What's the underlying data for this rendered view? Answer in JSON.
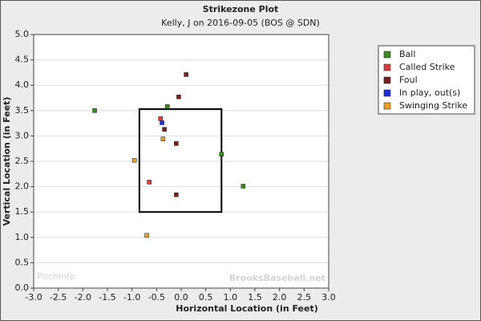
{
  "chart_data": {
    "type": "scatter",
    "title": "Strikezone Plot",
    "subtitle": "Kelly, J on 2016-09-05 (BOS @ SDN)",
    "xlabel": "Horizontal Location (in Feet)",
    "ylabel": "Vertical Location (in Feet)",
    "watermarks": [
      "PitchInfo",
      "BrooksBaseball.net"
    ],
    "xlim": [
      -3.0,
      3.0
    ],
    "ylim": [
      0.0,
      5.0
    ],
    "xticks": [
      {
        "value": -3,
        "label": "-3.0"
      },
      {
        "value": -2.5,
        "label": "-2.5"
      },
      {
        "value": -2,
        "label": "-2.0"
      },
      {
        "value": -1.5,
        "label": "-1.5"
      },
      {
        "value": -1,
        "label": "-1.0"
      },
      {
        "value": -0.5,
        "label": "-0.5"
      },
      {
        "value": 0,
        "label": "0.0"
      },
      0.5,
      {
        "value": 1,
        "label": "1.0"
      },
      1.5,
      {
        "value": 2,
        "label": "2.0"
      },
      2.5,
      {
        "value": 3,
        "label": "3.0"
      }
    ],
    "yticks": [
      {
        "value": 0,
        "label": "0.0"
      },
      0.5,
      {
        "value": 1,
        "label": "1.0"
      },
      1.5,
      {
        "value": 2,
        "label": "2.0"
      },
      2.5,
      {
        "value": 3,
        "label": "3.0"
      },
      3.5,
      {
        "value": 4,
        "label": "4.0"
      },
      4.5,
      {
        "value": 5,
        "label": "5.0"
      }
    ],
    "grid": true,
    "legend": "right",
    "strike_zone": {
      "x": [
        -0.85,
        0.82
      ],
      "y": [
        1.5,
        3.53
      ]
    },
    "series": [
      {
        "name": "Ball",
        "color": "#3a8a1e",
        "x": [
          -1.76,
          -0.28,
          1.26,
          0.82
        ],
        "y": [
          3.5,
          3.58,
          2.01,
          2.64
        ]
      },
      {
        "name": "Called Strike",
        "color": "#e03a3a",
        "x": [
          -0.65,
          -0.42
        ],
        "y": [
          2.09,
          3.34
        ]
      },
      {
        "name": "Foul",
        "color": "#7a1f1f",
        "x": [
          0.1,
          -0.05,
          -0.34,
          -0.1,
          -0.1
        ],
        "y": [
          4.21,
          3.77,
          3.13,
          2.85,
          1.84
        ]
      },
      {
        "name": "In play, out(s)",
        "color": "#1a2fe0",
        "x": [
          -0.39
        ],
        "y": [
          3.26
        ]
      },
      {
        "name": "Swinging Strike",
        "color": "#f0a020",
        "x": [
          -0.95,
          -0.37,
          -0.7
        ],
        "y": [
          2.52,
          2.94,
          1.04
        ]
      }
    ]
  }
}
